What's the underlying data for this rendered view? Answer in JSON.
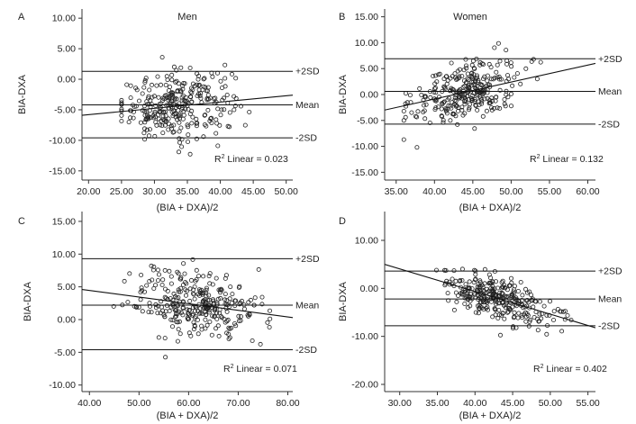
{
  "chart_data": [
    {
      "panel": "A",
      "type": "scatter",
      "title": "Men",
      "xlabel": "(BIA + DXA)/2",
      "ylabel": "BIA-DXA",
      "xlim": [
        19,
        51
      ],
      "ylim": [
        -16.5,
        11.5
      ],
      "xticks": [
        20,
        25,
        30,
        35,
        40,
        45,
        50
      ],
      "xtick_labels": [
        "20.00",
        "25.00",
        "30.00",
        "35.00",
        "40.00",
        "45.00",
        "50.00"
      ],
      "yticks": [
        10,
        5,
        0,
        -5,
        -10,
        -15
      ],
      "ytick_labels": [
        "10.00",
        "5.00",
        "0.00",
        "-5.00",
        "-10.00",
        "-15.00"
      ],
      "hlines": [
        {
          "label": "+2SD",
          "y": 1.3
        },
        {
          "label": "Mean",
          "y": -4.2
        },
        {
          "label": "-2SD",
          "y": -9.6
        }
      ],
      "fit_line": {
        "x": [
          19,
          51
        ],
        "y": [
          -5.9,
          -2.6
        ]
      },
      "r2_label": "Linear = 0.023",
      "point_spread": {
        "x_center": 33.5,
        "x_sd": 4.2,
        "slope": 0.1,
        "y_sd": 2.7,
        "x_min": 25,
        "x_max": 47
      }
    },
    {
      "panel": "B",
      "type": "scatter",
      "title": "Women",
      "xlabel": "(BIA + DXA)/2",
      "ylabel": "BIA-DXA",
      "xlim": [
        33.5,
        61
      ],
      "ylim": [
        -16.5,
        16.5
      ],
      "xticks": [
        35,
        40,
        45,
        50,
        55,
        60
      ],
      "xtick_labels": [
        "35.00",
        "40.00",
        "45.00",
        "50.00",
        "55.00",
        "60.00"
      ],
      "yticks": [
        15,
        10,
        5,
        0,
        -5,
        -10,
        -15
      ],
      "ytick_labels": [
        "15.00",
        "10.00",
        "5.00",
        "0.00",
        "-5.00",
        "-10.00",
        "-15.00"
      ],
      "hlines": [
        {
          "label": "+2SD",
          "y": 6.9
        },
        {
          "label": "Mean",
          "y": 0.6
        },
        {
          "label": "-2SD",
          "y": -5.7
        }
      ],
      "fit_line": {
        "x": [
          33.5,
          61
        ],
        "y": [
          -3.0,
          6.0
        ]
      },
      "r2_label": "Linear = 0.132",
      "point_spread": {
        "x_center": 44,
        "x_sd": 3.5,
        "slope": 0.33,
        "y_sd": 2.9,
        "x_min": 36,
        "x_max": 57
      }
    },
    {
      "panel": "C",
      "type": "scatter",
      "title": "",
      "xlabel": "(BIA + DXA)/2",
      "ylabel": "BIA-DXA",
      "xlim": [
        38.5,
        81
      ],
      "ylim": [
        -11,
        16.5
      ],
      "xticks": [
        40,
        50,
        60,
        70,
        80
      ],
      "xtick_labels": [
        "40.00",
        "50.00",
        "60.00",
        "70.00",
        "80.00"
      ],
      "yticks": [
        15,
        10,
        5,
        0,
        -5,
        -10
      ],
      "ytick_labels": [
        "15.00",
        "10.00",
        "5.00",
        "0.00",
        "-5.00",
        "-10.00"
      ],
      "hlines": [
        {
          "label": "+2SD",
          "y": 9.3
        },
        {
          "label": "Mean",
          "y": 2.2
        },
        {
          "label": "-2SD",
          "y": -4.6
        }
      ],
      "fit_line": {
        "x": [
          38.5,
          81
        ],
        "y": [
          4.6,
          0.3
        ]
      },
      "r2_label": "Linear = 0.071",
      "point_spread": {
        "x_center": 62,
        "x_sd": 6.5,
        "slope": -0.1,
        "y_sd": 2.6,
        "x_min": 44,
        "x_max": 79
      }
    },
    {
      "panel": "D",
      "type": "scatter",
      "title": "",
      "xlabel": "(BIA + DXA)/2",
      "ylabel": "BIA-DXA",
      "xlim": [
        28,
        56
      ],
      "ylim": [
        -21.5,
        16
      ],
      "xticks": [
        30,
        35,
        40,
        45,
        50,
        55
      ],
      "xtick_labels": [
        "30.00",
        "35.00",
        "40.00",
        "45.00",
        "50.00",
        "55.00"
      ],
      "yticks": [
        10,
        0,
        -10,
        -20
      ],
      "ytick_labels": [
        "10.00",
        "0.00",
        "-10.00",
        "-20.00"
      ],
      "hlines": [
        {
          "label": "+2SD",
          "y": 3.6
        },
        {
          "label": "Mean",
          "y": -2.2
        },
        {
          "label": "-2SD",
          "y": -7.8
        }
      ],
      "fit_line": {
        "x": [
          28,
          56
        ],
        "y": [
          5.0,
          -8.2
        ]
      },
      "r2_label": "Linear = 0.402",
      "point_spread": {
        "x_center": 43,
        "x_sd": 3.5,
        "slope": -0.47,
        "y_sd": 2.2,
        "x_min": 33,
        "x_max": 55
      }
    }
  ]
}
